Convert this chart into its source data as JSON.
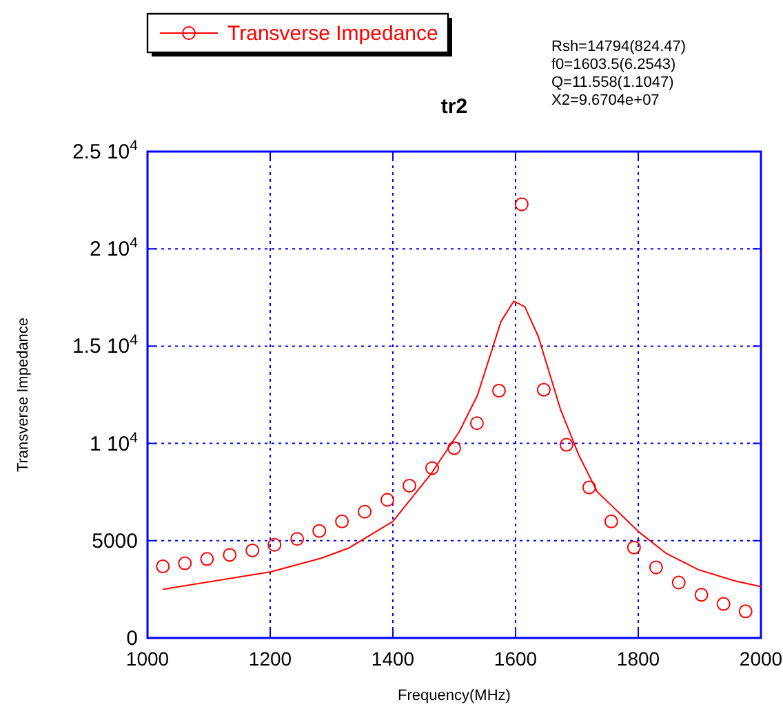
{
  "chart_data": {
    "type": "scatter",
    "title": "tr2",
    "xlabel": "Frequency(MHz)",
    "ylabel": "Transverse Impedance",
    "annotations": [
      "Rsh=14794(824.47)",
      "f0=1603.5(6.2543)",
      "Q=11.558(1.1047)",
      "X2=9.6704e+07"
    ],
    "xlim": [
      1000,
      2000
    ],
    "xticks": [
      1000,
      1200,
      1400,
      1600,
      1800,
      2000
    ],
    "ylim": [
      0,
      25000
    ],
    "yticks": [
      0,
      5000,
      {
        "value": 10000,
        "label": "1 10$^{4}$"
      },
      {
        "value": 15000,
        "label": "1.5 10$^{4}$"
      },
      {
        "value": 20000,
        "label": "2 10$^{4}$"
      },
      {
        "value": 25000,
        "label": "2.5 10$^{4}$"
      }
    ],
    "grid": true,
    "legend": "top left",
    "marker": "circle",
    "series": [
      {
        "name": "Transverse Impedance",
        "color": "#ff0000",
        "x": [
          1025,
          1061,
          1097,
          1134,
          1171,
          1207,
          1244,
          1280,
          1317,
          1354,
          1391,
          1427,
          1464,
          1500,
          1537,
          1573,
          1610,
          1646,
          1683,
          1720,
          1756,
          1793,
          1829,
          1866,
          1903,
          1939,
          1975
        ],
        "values": [
          3680,
          3840,
          4060,
          4270,
          4500,
          4790,
          5090,
          5500,
          5990,
          6490,
          7100,
          7830,
          8730,
          9760,
          11040,
          12710,
          22290,
          12760,
          9930,
          7740,
          5990,
          4650,
          3630,
          2850,
          2220,
          1750,
          1370
        ]
      },
      {
        "type": "line",
        "color": "#ff0000",
        "marker": "none",
        "line_style": "solid",
        "x": [
          1025,
          1201,
          1283,
          1328,
          1400,
          1463,
          1508,
          1538,
          1576,
          1597,
          1615,
          1637,
          1673,
          1703,
          1733,
          1801,
          1846,
          1898,
          1958,
          2000
        ],
        "values": [
          2500,
          3400,
          4100,
          4620,
          5990,
          8470,
          10590,
          12480,
          16250,
          17310,
          17030,
          15500,
          11770,
          9410,
          7520,
          5450,
          4340,
          3510,
          2930,
          2640
        ]
      }
    ]
  }
}
